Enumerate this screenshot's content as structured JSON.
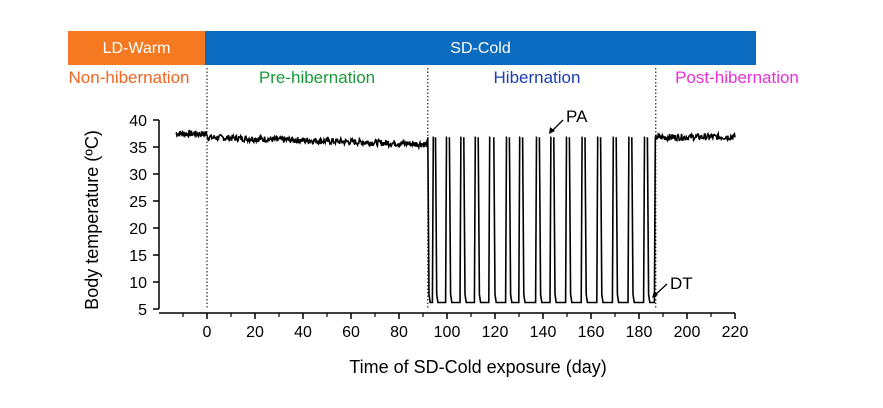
{
  "chart_data": {
    "type": "line",
    "xlabel": "Time of SD-Cold exposure (day)",
    "ylabel": "Body temperature (ºC)",
    "xlim": [
      -15,
      220
    ],
    "ylim": [
      5,
      40
    ],
    "xticks": [
      0,
      20,
      40,
      60,
      80,
      100,
      120,
      140,
      160,
      180,
      200,
      220
    ],
    "yticks": [
      5,
      10,
      15,
      20,
      25,
      30,
      35,
      40
    ],
    "conditions": [
      {
        "label": "LD-Warm",
        "start": -15,
        "end": 0,
        "color": "#f47920"
      },
      {
        "label": "SD-Cold",
        "start": 0,
        "end": 236,
        "color": "#0b6cbf"
      }
    ],
    "phases": [
      {
        "label": "Non-hibernation",
        "color": "#f26522"
      },
      {
        "label": "Pre-hibernation",
        "color": "#1a9a3a"
      },
      {
        "label": "Hibernation",
        "color": "#1b3fb0"
      },
      {
        "label": "Post-hibernation",
        "color": "#ec2fd6"
      }
    ],
    "phase_boundaries": [
      0,
      92,
      187
    ],
    "annotations": [
      {
        "label": "PA",
        "x": 145,
        "y": 37
      },
      {
        "label": "DT",
        "x": 187,
        "y": 6
      }
    ],
    "series": [
      {
        "euthermic_segments": [
          {
            "x": [
              -13,
              0
            ],
            "y": [
              37.5,
              37.4
            ]
          },
          {
            "x": [
              0,
              92
            ],
            "y": [
              36.8,
              35.5
            ]
          },
          {
            "x": [
              187,
              220
            ],
            "y": [
              36.8,
              36.9
            ]
          }
        ],
        "torpor_bouts": [
          {
            "start": 92,
            "end": 94.5
          },
          {
            "start": 95.2,
            "end": 100
          },
          {
            "start": 101,
            "end": 106
          },
          {
            "start": 107,
            "end": 112
          },
          {
            "start": 113,
            "end": 118
          },
          {
            "start": 119.5,
            "end": 125
          },
          {
            "start": 126,
            "end": 130.5
          },
          {
            "start": 131.5,
            "end": 137.5
          },
          {
            "start": 138.5,
            "end": 143.5
          },
          {
            "start": 144.5,
            "end": 150
          },
          {
            "start": 151,
            "end": 156.5
          },
          {
            "start": 157.5,
            "end": 163
          },
          {
            "start": 164,
            "end": 169.5
          },
          {
            "start": 170.5,
            "end": 176
          },
          {
            "start": 177,
            "end": 182.5
          },
          {
            "start": 183.5,
            "end": 187
          }
        ],
        "euthermic_temp": 36.8,
        "torpor_temp": 6.2
      }
    ]
  }
}
